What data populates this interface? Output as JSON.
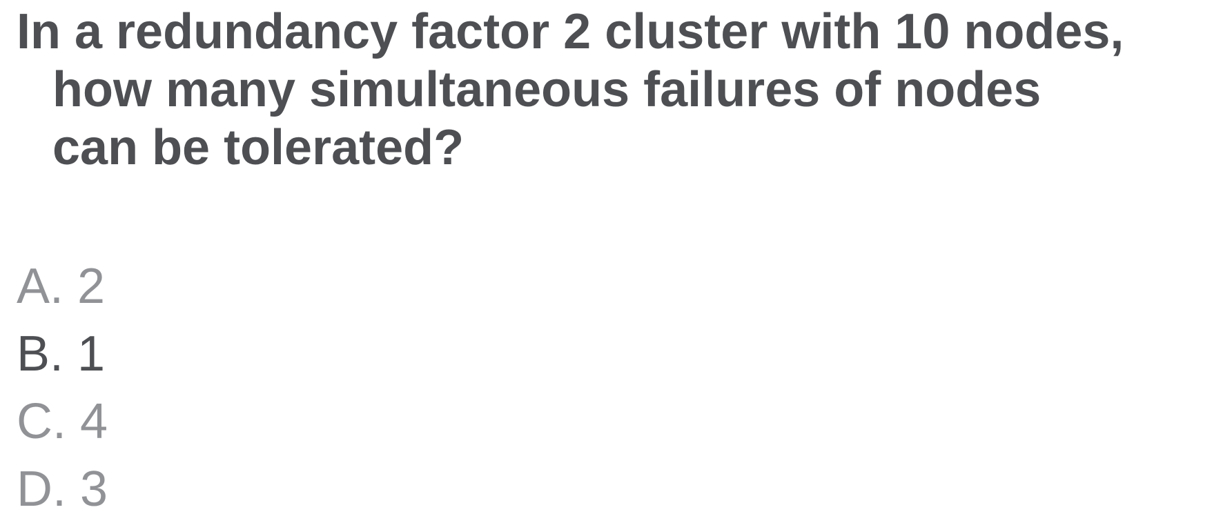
{
  "question": {
    "text": "In a redundancy factor 2 cluster with 10 nodes, how many simultaneous failures of nodes can be tolerated?"
  },
  "options": [
    {
      "letter": "A.",
      "value": "2",
      "selected": false
    },
    {
      "letter": "B.",
      "value": "1",
      "selected": true
    },
    {
      "letter": "C.",
      "value": "4",
      "selected": false
    },
    {
      "letter": "D.",
      "value": "3",
      "selected": false
    }
  ],
  "colors": {
    "question_text": "#4d4f53",
    "option_default": "#909296",
    "option_selected": "#4d4f53",
    "background": "#ffffff"
  }
}
